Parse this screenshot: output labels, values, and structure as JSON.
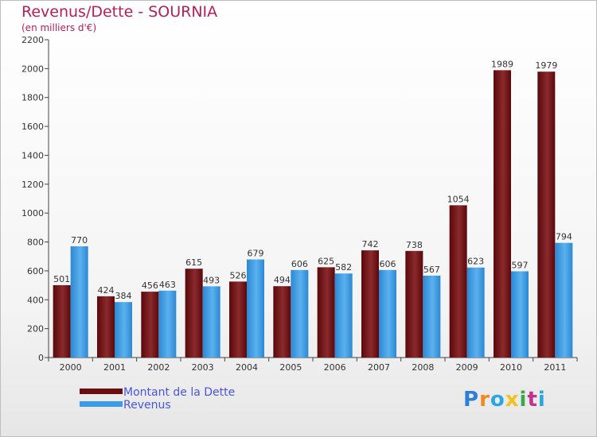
{
  "header": {
    "title": "Revenus/Dette - SOURNIA",
    "subtitle": "(en milliers d'€)"
  },
  "chart_data": {
    "type": "bar",
    "title": "Revenus/Dette - SOURNIA",
    "subtitle": "(en milliers d'€)",
    "categories": [
      "2000",
      "2001",
      "2002",
      "2003",
      "2004",
      "2005",
      "2006",
      "2007",
      "2008",
      "2009",
      "2010",
      "2011"
    ],
    "series": [
      {
        "name": "Montant de la Dette",
        "color": "#7a1418",
        "values": [
          501,
          424,
          456,
          615,
          526,
          494,
          625,
          742,
          738,
          1054,
          1989,
          1979
        ]
      },
      {
        "name": "Revenus",
        "color": "#3d9be3",
        "values": [
          770,
          384,
          463,
          493,
          679,
          606,
          582,
          606,
          567,
          623,
          597,
          794
        ]
      }
    ],
    "ylim": [
      0,
      2200
    ],
    "yticks": [
      0,
      200,
      400,
      600,
      800,
      1000,
      1200,
      1400,
      1600,
      1800,
      2000,
      2200
    ],
    "grid": false,
    "legend": "bottom-left"
  },
  "legend": {
    "items": [
      {
        "label": "Montant de la Dette",
        "color": "#6b0d10"
      },
      {
        "label": "Revenus",
        "color": "#3d9be3"
      }
    ]
  },
  "logo": {
    "letters": [
      "P",
      "r",
      "o",
      "x",
      "i",
      "t",
      "i"
    ],
    "colors": [
      "#2f7fd6",
      "#f08a1c",
      "#2aa7de",
      "#f2c21a",
      "#3aa84a",
      "#c4328e",
      "#2aa7de"
    ]
  }
}
